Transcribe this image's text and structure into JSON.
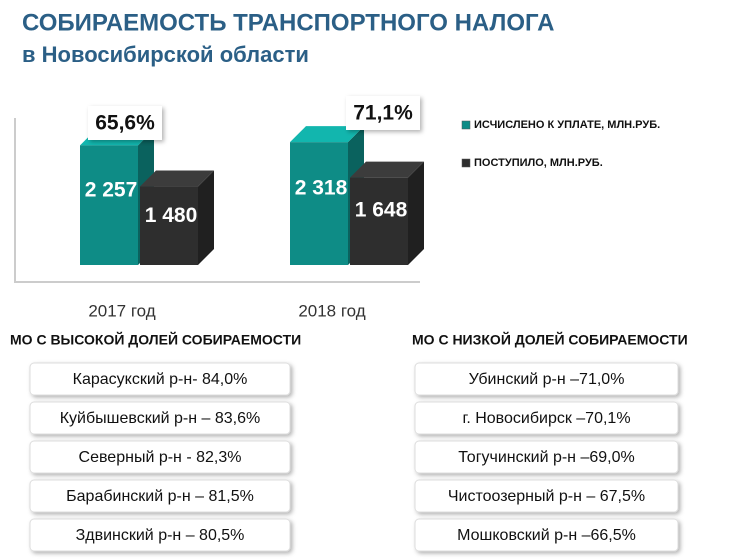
{
  "title": "СОБИРАЕМОСТЬ ТРАНСПОРТНОГО НАЛОГА",
  "subtitle": "в Новосибирской области",
  "chart_data": {
    "type": "bar",
    "categories": [
      "2017 год",
      "2018 год"
    ],
    "series": [
      {
        "name": "ИСЧИСЛЕНО К УПЛАТЕ, МЛН.РУБ.",
        "color": "#0e8c86",
        "values": [
          2257,
          2318
        ],
        "value_labels": [
          "2 257",
          "2 318"
        ]
      },
      {
        "name": "ПОСТУПИЛО, МЛН.РУБ.",
        "color": "#2e2e2e",
        "values": [
          1480,
          1648
        ],
        "value_labels": [
          "1 480",
          "1 648"
        ]
      }
    ],
    "annotations": [
      "65,6%",
      "71,1%"
    ]
  },
  "high": {
    "title": "МО С ВЫСОКОЙ ДОЛЕЙ СОБИРАЕМОСТИ",
    "items": [
      "Карасукский р-н- 84,0%",
      "Куйбышевский р-н – 83,6%",
      "Северный р-н  - 82,3%",
      "Барабинский р-н – 81,5%",
      "Здвинский р-н – 80,5%"
    ]
  },
  "low": {
    "title": "МО С НИЗКОЙ ДОЛЕЙ СОБИРАЕМОСТИ",
    "items": [
      "Убинский р-н –71,0%",
      "г. Новосибирск –70,1%",
      "Тогучинский р-н –69,0%",
      "Чистоозерный р-н – 67,5%",
      "Мошковский р-н –66,5%"
    ]
  }
}
